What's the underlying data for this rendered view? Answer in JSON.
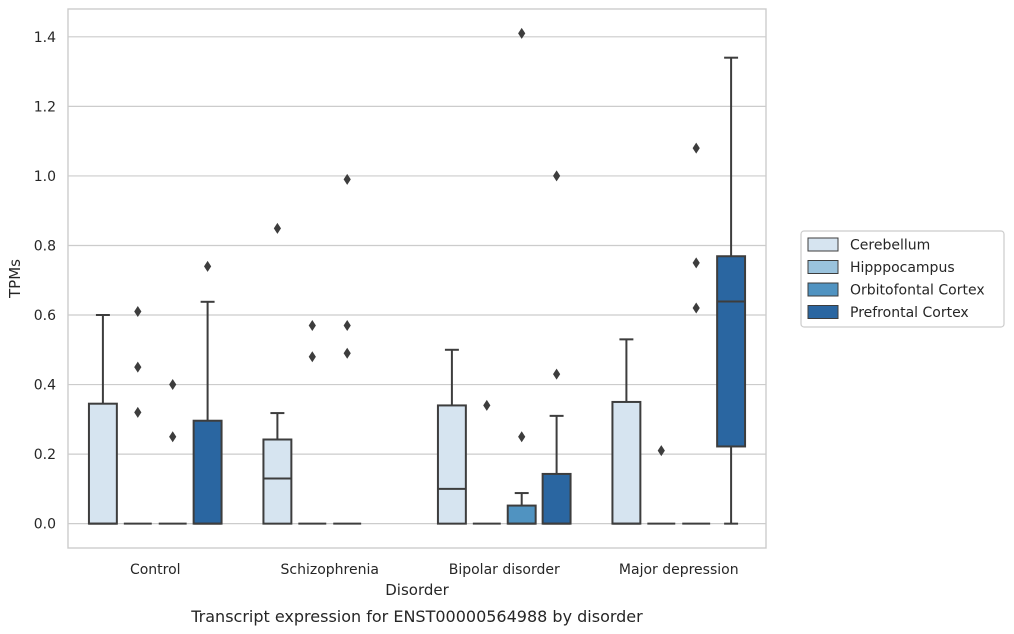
{
  "chart_data": {
    "type": "box",
    "title": "",
    "caption": "Transcript expression for ENST00000564988 by disorder",
    "xlabel": "Disorder",
    "ylabel": "TPMs",
    "ylim": [
      -0.07,
      1.48
    ],
    "yticks": [
      "0.0",
      "0.2",
      "0.4",
      "0.6",
      "0.8",
      "1.0",
      "1.2",
      "1.4"
    ],
    "grid": true,
    "legend_position": "right",
    "categories": [
      "Control",
      "Schizophrenia",
      "Bipolar disorder",
      "Major depression"
    ],
    "series": [
      {
        "name": "Cerebellum",
        "color": "#d6e4f0",
        "boxes": [
          {
            "min": 0.0,
            "q1": 0.0,
            "median": 0.0,
            "q3": 0.345,
            "max": 0.6,
            "outliers": []
          },
          {
            "min": 0.0,
            "q1": 0.0,
            "median": 0.13,
            "q3": 0.242,
            "max": 0.318,
            "outliers": [
              0.849
            ]
          },
          {
            "min": 0.0,
            "q1": 0.0,
            "median": 0.1,
            "q3": 0.34,
            "max": 0.5,
            "outliers": []
          },
          {
            "min": 0.0,
            "q1": 0.0,
            "median": 0.0,
            "q3": 0.35,
            "max": 0.53,
            "outliers": []
          }
        ]
      },
      {
        "name": "Hipppocampus",
        "color": "#9ac3dd",
        "boxes": [
          {
            "min": 0.0,
            "q1": 0.0,
            "median": 0.0,
            "q3": 0.0,
            "max": 0.0,
            "outliers": [
              0.32,
              0.45,
              0.61
            ]
          },
          {
            "min": 0.0,
            "q1": 0.0,
            "median": 0.0,
            "q3": 0.0,
            "max": 0.0,
            "outliers": [
              0.48,
              0.57
            ]
          },
          {
            "min": 0.0,
            "q1": 0.0,
            "median": 0.0,
            "q3": 0.0,
            "max": 0.0,
            "outliers": [
              0.34
            ]
          },
          {
            "min": 0.0,
            "q1": 0.0,
            "median": 0.0,
            "q3": 0.0,
            "max": 0.0,
            "outliers": [
              0.21
            ]
          }
        ]
      },
      {
        "name": "Orbitofontal Cortex",
        "color": "#5093c1",
        "boxes": [
          {
            "min": 0.0,
            "q1": 0.0,
            "median": 0.0,
            "q3": 0.0,
            "max": 0.0,
            "outliers": [
              0.25,
              0.4
            ]
          },
          {
            "min": 0.0,
            "q1": 0.0,
            "median": 0.0,
            "q3": 0.0,
            "max": 0.0,
            "outliers": [
              0.49,
              0.57,
              0.99
            ]
          },
          {
            "min": 0.0,
            "q1": 0.0,
            "median": 0.0,
            "q3": 0.052,
            "max": 0.088,
            "outliers": [
              0.25,
              1.41
            ]
          },
          {
            "min": 0.0,
            "q1": 0.0,
            "median": 0.0,
            "q3": 0.0,
            "max": 0.0,
            "outliers": [
              0.62,
              0.75,
              1.08
            ]
          }
        ]
      },
      {
        "name": "Prefrontal Cortex",
        "color": "#2a66a1",
        "boxes": [
          {
            "min": 0.0,
            "q1": 0.0,
            "median": 0.0,
            "q3": 0.296,
            "max": 0.638,
            "outliers": [
              0.74
            ]
          },
          null,
          {
            "min": 0.0,
            "q1": 0.0,
            "median": 0.0,
            "q3": 0.143,
            "max": 0.31,
            "outliers": [
              0.43,
              1.0
            ]
          },
          {
            "min": 0.0,
            "q1": 0.222,
            "median": 0.639,
            "q3": 0.769,
            "max": 1.34,
            "outliers": []
          }
        ]
      }
    ]
  }
}
